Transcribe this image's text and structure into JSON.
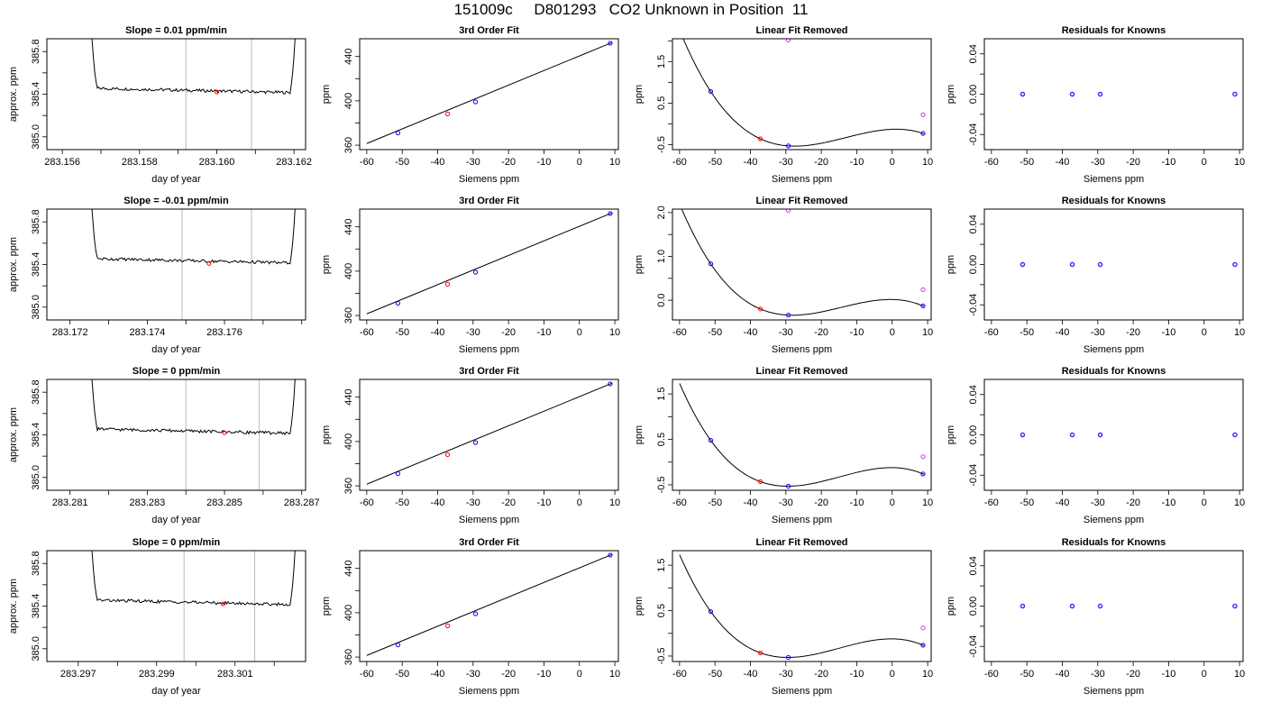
{
  "page_title": "151009c     D801293   CO2 Unknown in Position  11",
  "colors": {
    "line": "#000000",
    "blue": "#0000ff",
    "red": "#ff0000",
    "magenta": "#cc33ff",
    "window": "#bbbbbb"
  },
  "chart_data": [
    {
      "type": "line",
      "title": "Slope =  0.01  ppm/min",
      "xlabel": "day of year",
      "ylabel": "approx. ppm",
      "xlim": [
        283.1556,
        283.1623
      ],
      "ylim": [
        384.88,
        385.92
      ],
      "xticks": [
        "283.156",
        "283.158",
        "283.160",
        "283.162"
      ],
      "yticks": [
        "385.0",
        "385.4",
        "385.8"
      ],
      "window": [
        283.1592,
        283.1609
      ],
      "marker": [
        283.16,
        385.42
      ]
    },
    {
      "type": "line",
      "title": "3rd Order Fit",
      "xlabel": "Siemens ppm",
      "ylabel": "ppm",
      "xlim": [
        -62,
        11
      ],
      "ylim": [
        356,
        456
      ],
      "xticks": [
        "-60",
        "-50",
        "-40",
        "-30",
        "-20",
        "-10",
        "0",
        "10"
      ],
      "yticks": [
        "360",
        "400",
        "440"
      ],
      "points": [
        [
          -51.2,
          371.0,
          "blue"
        ],
        [
          -37.2,
          388.2,
          "red"
        ],
        [
          -29.3,
          399.1,
          "blue"
        ],
        [
          8.7,
          452.0,
          "blue"
        ]
      ],
      "curve_x": [
        -60,
        9.2
      ],
      "curve_y": [
        361.5,
        452.6
      ]
    },
    {
      "type": "line",
      "title": "Linear Fit Removed",
      "xlabel": "Siemens ppm",
      "ylabel": "ppm",
      "xlim": [
        -62,
        11
      ],
      "ylim": [
        -0.62,
        2.05
      ],
      "xticks": [
        "-60",
        "-50",
        "-40",
        "-30",
        "-20",
        "-10",
        "0",
        "10"
      ],
      "yticks": [
        "-0.5",
        "0.5",
        "1.5"
      ],
      "points": [
        [
          -51.2,
          0.78,
          "blue"
        ],
        [
          -37.2,
          -0.36,
          "red"
        ],
        [
          -29.3,
          -0.53,
          "blue"
        ],
        [
          8.7,
          -0.23,
          "blue"
        ],
        [
          -29.3,
          2.02,
          "magenta"
        ],
        [
          8.7,
          0.22,
          "magenta"
        ]
      ]
    },
    {
      "type": "scatter",
      "title": "Residuals for Knowns",
      "xlabel": "Siemens ppm",
      "ylabel": "ppm",
      "xlim": [
        -62,
        11
      ],
      "ylim": [
        -0.055,
        0.055
      ],
      "xticks": [
        "-60",
        "-50",
        "-40",
        "-30",
        "-20",
        "-10",
        "0",
        "10"
      ],
      "yticks": [
        "-0.04",
        "0.00",
        "0.04"
      ],
      "points": [
        [
          -51.2,
          0,
          "mix"
        ],
        [
          -37.2,
          0,
          "mix"
        ],
        [
          -29.3,
          0,
          "mix"
        ],
        [
          8.7,
          0,
          "mix"
        ]
      ]
    },
    {
      "type": "line",
      "title": "Slope =  -0.01  ppm/min",
      "xlabel": "day of year",
      "ylabel": "approx. ppm",
      "xlim": [
        283.1714,
        283.1781
      ],
      "ylim": [
        384.88,
        385.92
      ],
      "xticks": [
        "283.172",
        "283.174",
        "283.176"
      ],
      "yticks": [
        "385.0",
        "385.4",
        "385.8"
      ],
      "window": [
        283.1749,
        283.1767
      ],
      "marker": [
        283.1756,
        385.41
      ]
    },
    {
      "type": "line",
      "title": "3rd Order Fit",
      "xlabel": "Siemens ppm",
      "ylabel": "ppm",
      "xlim": [
        -62,
        11
      ],
      "ylim": [
        356,
        456
      ],
      "xticks": [
        "-60",
        "-50",
        "-40",
        "-30",
        "-20",
        "-10",
        "0",
        "10"
      ],
      "yticks": [
        "360",
        "400",
        "440"
      ],
      "points": [
        [
          -51.2,
          371.0,
          "blue"
        ],
        [
          -37.2,
          388.2,
          "red"
        ],
        [
          -29.3,
          399.1,
          "blue"
        ],
        [
          8.7,
          452.0,
          "blue"
        ]
      ],
      "curve_x": [
        -60,
        9.2
      ],
      "curve_y": [
        361.5,
        452.6
      ]
    },
    {
      "type": "line",
      "title": "Linear Fit Removed",
      "xlabel": "Siemens ppm",
      "ylabel": "ppm",
      "xlim": [
        -62,
        11
      ],
      "ylim": [
        -0.45,
        2.08
      ],
      "xticks": [
        "-60",
        "-50",
        "-40",
        "-30",
        "-20",
        "-10",
        "0",
        "10"
      ],
      "yticks": [
        "0.0",
        "1.0",
        "2.0"
      ],
      "points": [
        [
          -51.2,
          0.83,
          "blue"
        ],
        [
          -37.2,
          -0.2,
          "red"
        ],
        [
          -29.3,
          -0.34,
          "blue"
        ],
        [
          8.7,
          -0.13,
          "blue"
        ],
        [
          -29.3,
          2.05,
          "magenta"
        ],
        [
          8.7,
          0.24,
          "magenta"
        ]
      ]
    },
    {
      "type": "scatter",
      "title": "Residuals for Knowns",
      "xlabel": "Siemens ppm",
      "ylabel": "ppm",
      "xlim": [
        -62,
        11
      ],
      "ylim": [
        -0.055,
        0.055
      ],
      "xticks": [
        "-60",
        "-50",
        "-40",
        "-30",
        "-20",
        "-10",
        "0",
        "10"
      ],
      "yticks": [
        "-0.04",
        "0.00",
        "0.04"
      ],
      "points": [
        [
          -51.2,
          0,
          "mix"
        ],
        [
          -37.2,
          0,
          "mix"
        ],
        [
          -29.3,
          0,
          "mix"
        ],
        [
          8.7,
          0,
          "mix"
        ]
      ]
    },
    {
      "type": "line",
      "title": "Slope =  0  ppm/min",
      "xlabel": "day of year",
      "ylabel": "approx. ppm",
      "xlim": [
        283.2804,
        283.2871
      ],
      "ylim": [
        384.88,
        385.92
      ],
      "xticks": [
        "283.281",
        "283.283",
        "283.285",
        "283.287"
      ],
      "yticks": [
        "385.0",
        "385.4",
        "385.8"
      ],
      "window": [
        283.284,
        283.2859
      ],
      "marker": [
        283.285,
        385.42
      ]
    },
    {
      "type": "line",
      "title": "3rd Order Fit",
      "xlabel": "Siemens ppm",
      "ylabel": "ppm",
      "xlim": [
        -62,
        11
      ],
      "ylim": [
        356,
        456
      ],
      "xticks": [
        "-60",
        "-50",
        "-40",
        "-30",
        "-20",
        "-10",
        "0",
        "10"
      ],
      "yticks": [
        "360",
        "400",
        "440"
      ],
      "points": [
        [
          -51.2,
          371.0,
          "blue"
        ],
        [
          -37.2,
          388.2,
          "red"
        ],
        [
          -29.3,
          399.1,
          "blue"
        ],
        [
          8.7,
          452.0,
          "blue"
        ]
      ],
      "curve_x": [
        -60,
        9.2
      ],
      "curve_y": [
        361.5,
        452.6
      ]
    },
    {
      "type": "line",
      "title": "Linear Fit Removed",
      "xlabel": "Siemens ppm",
      "ylabel": "ppm",
      "xlim": [
        -62,
        11
      ],
      "ylim": [
        -0.62,
        1.82
      ],
      "xticks": [
        "-60",
        "-50",
        "-40",
        "-30",
        "-20",
        "-10",
        "0",
        "10"
      ],
      "yticks": [
        "-0.5",
        "0.5",
        "1.5"
      ],
      "points": [
        [
          -51.2,
          0.48,
          "blue"
        ],
        [
          -37.2,
          -0.43,
          "red"
        ],
        [
          -29.3,
          -0.53,
          "blue"
        ],
        [
          8.7,
          -0.26,
          "blue"
        ],
        [
          8.7,
          0.12,
          "magenta"
        ]
      ]
    },
    {
      "type": "scatter",
      "title": "Residuals for Knowns",
      "xlabel": "Siemens ppm",
      "ylabel": "ppm",
      "xlim": [
        -62,
        11
      ],
      "ylim": [
        -0.055,
        0.055
      ],
      "xticks": [
        "-60",
        "-50",
        "-40",
        "-30",
        "-20",
        "-10",
        "0",
        "10"
      ],
      "yticks": [
        "-0.04",
        "0.00",
        "0.04"
      ],
      "points": [
        [
          -51.2,
          0,
          "mix"
        ],
        [
          -37.2,
          0,
          "mix"
        ],
        [
          -29.3,
          0,
          "mix"
        ],
        [
          8.7,
          0,
          "mix"
        ]
      ]
    },
    {
      "type": "line",
      "title": "Slope =  0  ppm/min",
      "xlabel": "day of year",
      "ylabel": "approx. ppm",
      "xlim": [
        283.2962,
        283.3028
      ],
      "ylim": [
        384.88,
        385.92
      ],
      "xticks": [
        "283.297",
        "283.299",
        "283.301"
      ],
      "yticks": [
        "385.0",
        "385.4",
        "385.8"
      ],
      "window": [
        283.2997,
        283.3015
      ],
      "marker": [
        283.3007,
        385.42
      ]
    },
    {
      "type": "line",
      "title": "3rd Order Fit",
      "xlabel": "Siemens ppm",
      "ylabel": "ppm",
      "xlim": [
        -62,
        11
      ],
      "ylim": [
        356,
        456
      ],
      "xticks": [
        "-60",
        "-50",
        "-40",
        "-30",
        "-20",
        "-10",
        "0",
        "10"
      ],
      "yticks": [
        "360",
        "400",
        "440"
      ],
      "points": [
        [
          -51.2,
          371.0,
          "blue"
        ],
        [
          -37.2,
          388.2,
          "red"
        ],
        [
          -29.3,
          399.1,
          "blue"
        ],
        [
          8.7,
          452.0,
          "blue"
        ]
      ],
      "curve_x": [
        -60,
        9.2
      ],
      "curve_y": [
        361.5,
        452.6
      ]
    },
    {
      "type": "line",
      "title": "Linear Fit Removed",
      "xlabel": "Siemens ppm",
      "ylabel": "ppm",
      "xlim": [
        -62,
        11
      ],
      "ylim": [
        -0.62,
        1.82
      ],
      "xticks": [
        "-60",
        "-50",
        "-40",
        "-30",
        "-20",
        "-10",
        "0",
        "10"
      ],
      "yticks": [
        "-0.5",
        "0.5",
        "1.5"
      ],
      "points": [
        [
          -51.2,
          0.48,
          "blue"
        ],
        [
          -37.2,
          -0.43,
          "red"
        ],
        [
          -29.3,
          -0.53,
          "blue"
        ],
        [
          8.7,
          -0.26,
          "blue"
        ],
        [
          8.7,
          0.12,
          "magenta"
        ]
      ]
    },
    {
      "type": "scatter",
      "title": "Residuals for Knowns",
      "xlabel": "Siemens ppm",
      "ylabel": "ppm",
      "xlim": [
        -62,
        11
      ],
      "ylim": [
        -0.055,
        0.055
      ],
      "xticks": [
        "-60",
        "-50",
        "-40",
        "-30",
        "-20",
        "-10",
        "0",
        "10"
      ],
      "yticks": [
        "-0.04",
        "0.00",
        "0.04"
      ],
      "points": [
        [
          -51.2,
          0,
          "mix"
        ],
        [
          -37.2,
          0,
          "mix"
        ],
        [
          -29.3,
          0,
          "mix"
        ],
        [
          8.7,
          0,
          "mix"
        ]
      ]
    }
  ]
}
